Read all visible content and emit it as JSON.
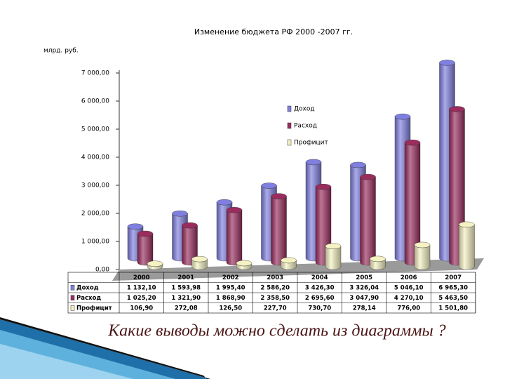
{
  "chart_data": {
    "type": "bar3d",
    "title": "Изменение бюджета РФ    2000 -2007 гг.",
    "y_label": "млрд. руб.",
    "categories": [
      "2000",
      "2001",
      "2002",
      "2003",
      "2004",
      "2005",
      "2006",
      "2007"
    ],
    "series": [
      {
        "name": "Доход",
        "color": "#7f7fe0",
        "values": [
          1132.1,
          1593.98,
          1995.4,
          2586.2,
          3426.3,
          3326.04,
          5046.1,
          6965.3
        ],
        "value_labels": [
          "1 132,10",
          "1 593,98",
          "1 995,40",
          "2 586,20",
          "3 426,30",
          "3 326,04",
          "5 046,10",
          "6 965,30"
        ]
      },
      {
        "name": "Расход",
        "color": "#9a2d5e",
        "values": [
          1025.2,
          1321.9,
          1868.9,
          2358.5,
          2695.6,
          3047.9,
          4270.1,
          5463.5
        ],
        "value_labels": [
          "1 025,20",
          "1 321,90",
          "1 868,90",
          "2 358,50",
          "2 695,60",
          "3 047,90",
          "4 270,10",
          "5 463,50"
        ]
      },
      {
        "name": "Профицит",
        "color": "#f4f2c2",
        "values": [
          106.9,
          272.08,
          126.5,
          227.7,
          730.7,
          278.14,
          776.0,
          1501.8
        ],
        "value_labels": [
          "106,90",
          "272,08",
          "126,50",
          "227,70",
          "730,70",
          "278,14",
          "776,00",
          "1 501,80"
        ]
      }
    ],
    "ylim": [
      0,
      7000
    ],
    "yticks": [
      {
        "value": 0,
        "label": "0,00"
      },
      {
        "value": 1000,
        "label": "1 000,00"
      },
      {
        "value": 2000,
        "label": "2 000,00"
      },
      {
        "value": 3000,
        "label": "3 000,00"
      },
      {
        "value": 4000,
        "label": "4 000,00"
      },
      {
        "value": 5000,
        "label": "5 000,00"
      },
      {
        "value": 6000,
        "label": "6 000,00"
      },
      {
        "value": 7000,
        "label": "7 000,00"
      }
    ],
    "grid": false
  },
  "caption": "Какие выводы можно сделать из диаграммы ?"
}
